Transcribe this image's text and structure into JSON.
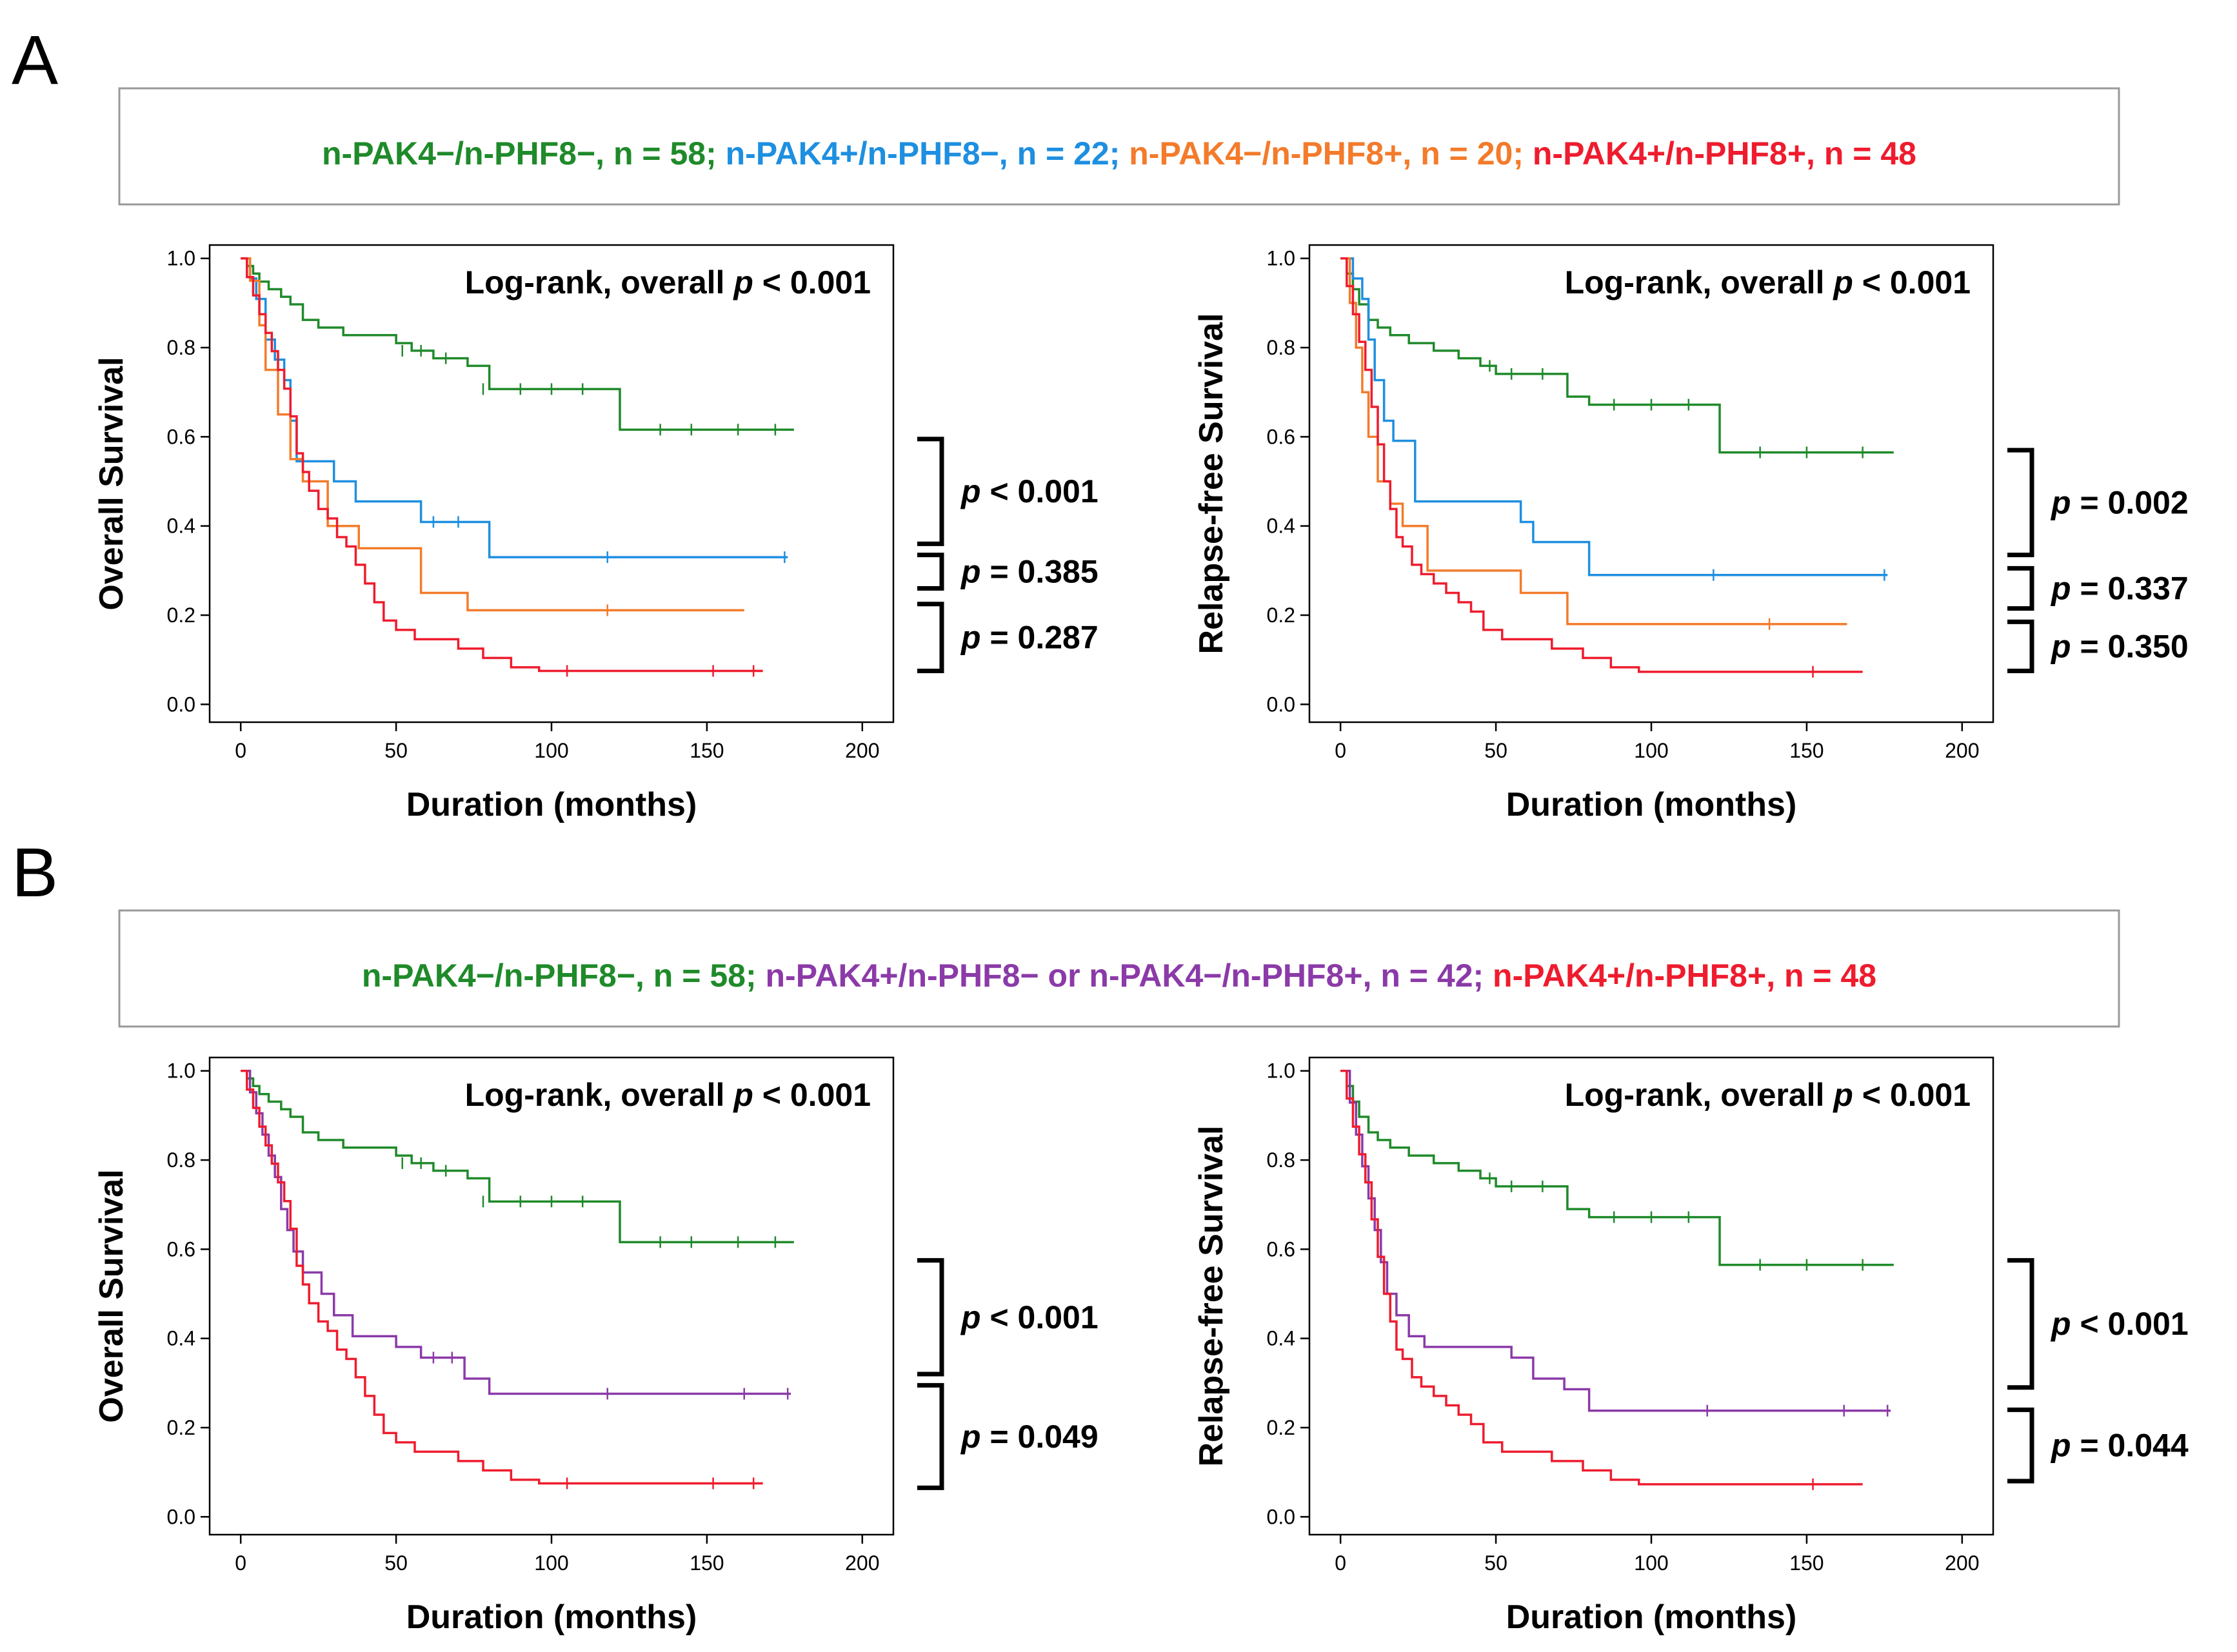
{
  "panels": {
    "A": {
      "label": "A",
      "legend": [
        {
          "text": "n-PAK4−/n-PHF8−, n = 58; ",
          "color": "#1f8a2a"
        },
        {
          "text": "n-PAK4+/n-PHF8−, n = 22; ",
          "color": "#1e8fe0"
        },
        {
          "text": "n-PAK4−/n-PHF8+, n = 20; ",
          "color": "#f37b2b"
        },
        {
          "text": "n-PAK4+/n-PHF8+, n = 48",
          "color": "#ee1c2e"
        }
      ]
    },
    "B": {
      "label": "B",
      "legend": [
        {
          "text": "n-PAK4−/n-PHF8−, n = 58; ",
          "color": "#1f8a2a"
        },
        {
          "text": "n-PAK4+/n-PHF8− or n-PAK4−/n-PHF8+, n = 42; ",
          "color": "#8b3aa8"
        },
        {
          "text": "n-PAK4+/n-PHF8+, n = 48",
          "color": "#ee1c2e"
        }
      ]
    }
  },
  "chart_data": [
    {
      "type": "line",
      "id": "A1",
      "panel": "A",
      "title": "Log-rank, overall p < 0.001",
      "xlabel": "Duration (months)",
      "ylabel": "Overall Survival",
      "xlim": [
        -10,
        210
      ],
      "ylim": [
        -0.04,
        1.03
      ],
      "xticks": [
        0,
        50,
        100,
        150,
        200
      ],
      "yticks": [
        0.0,
        0.2,
        0.4,
        0.6,
        0.8,
        1.0
      ],
      "series": [
        {
          "name": "n-PAK4−/n-PHF8−",
          "color": "#1f8a2a",
          "x": [
            0,
            2,
            4,
            6,
            9,
            13,
            16,
            20,
            25,
            33,
            37,
            50,
            55,
            62,
            73,
            80,
            122,
            178
          ],
          "y": [
            1.0,
            0.983,
            0.966,
            0.948,
            0.931,
            0.914,
            0.897,
            0.862,
            0.845,
            0.828,
            0.828,
            0.81,
            0.793,
            0.776,
            0.759,
            0.707,
            0.616,
            0.616
          ],
          "censor": [
            [
              52,
              0.793
            ],
            [
              58,
              0.793
            ],
            [
              66,
              0.776
            ],
            [
              78,
              0.707
            ],
            [
              90,
              0.707
            ],
            [
              100,
              0.707
            ],
            [
              110,
              0.707
            ],
            [
              135,
              0.616
            ],
            [
              145,
              0.616
            ],
            [
              160,
              0.616
            ],
            [
              172,
              0.616
            ]
          ]
        },
        {
          "name": "n-PAK4+/n-PHF8−",
          "color": "#1e8fe0",
          "x": [
            0,
            3,
            5,
            8,
            11,
            14,
            16,
            18,
            24,
            30,
            37,
            58,
            80,
            176
          ],
          "y": [
            1.0,
            0.955,
            0.909,
            0.818,
            0.773,
            0.727,
            0.636,
            0.545,
            0.545,
            0.5,
            0.455,
            0.409,
            0.33,
            0.33
          ],
          "censor": [
            [
              62,
              0.409
            ],
            [
              70,
              0.409
            ],
            [
              118,
              0.33
            ],
            [
              175,
              0.33
            ]
          ]
        },
        {
          "name": "n-PAK4−/n-PHF8+",
          "color": "#f37b2b",
          "x": [
            0,
            3,
            6,
            8,
            12,
            16,
            20,
            28,
            38,
            58,
            73,
            162
          ],
          "y": [
            1.0,
            0.95,
            0.85,
            0.75,
            0.65,
            0.55,
            0.5,
            0.4,
            0.35,
            0.25,
            0.211,
            0.211
          ],
          "censor": [
            [
              118,
              0.211
            ]
          ]
        },
        {
          "name": "n-PAK4+/n-PHF8+",
          "color": "#ee1c2e",
          "x": [
            0,
            2,
            4,
            6,
            8,
            10,
            12,
            14,
            16,
            18,
            20,
            22,
            25,
            28,
            31,
            34,
            37,
            40,
            43,
            46,
            50,
            56,
            62,
            70,
            78,
            87,
            96,
            168
          ],
          "y": [
            1.0,
            0.958,
            0.917,
            0.875,
            0.833,
            0.792,
            0.75,
            0.708,
            0.646,
            0.563,
            0.521,
            0.479,
            0.438,
            0.417,
            0.375,
            0.354,
            0.313,
            0.271,
            0.229,
            0.188,
            0.167,
            0.146,
            0.146,
            0.125,
            0.104,
            0.083,
            0.075,
            0.075
          ],
          "censor": [
            [
              105,
              0.075
            ],
            [
              152,
              0.075
            ],
            [
              165,
              0.075
            ]
          ]
        }
      ],
      "brackets": [
        {
          "from": 0.595,
          "to": 0.36,
          "label": "p < 0.001"
        },
        {
          "from": 0.335,
          "to": 0.26,
          "label": "p = 0.385"
        },
        {
          "from": 0.225,
          "to": 0.075,
          "label": "p = 0.287"
        }
      ]
    },
    {
      "type": "line",
      "id": "A2",
      "panel": "A",
      "title": "Log-rank, overall p < 0.001",
      "xlabel": "Duration (months)",
      "ylabel": "Relapse-free Survival",
      "xlim": [
        -10,
        210
      ],
      "ylim": [
        -0.04,
        1.03
      ],
      "xticks": [
        0,
        50,
        100,
        150,
        200
      ],
      "yticks": [
        0.0,
        0.2,
        0.4,
        0.6,
        0.8,
        1.0
      ],
      "series": [
        {
          "name": "n-PAK4−/n-PHF8−",
          "color": "#1f8a2a",
          "x": [
            0,
            2,
            4,
            6,
            9,
            12,
            16,
            22,
            30,
            38,
            45,
            50,
            73,
            80,
            122,
            178
          ],
          "y": [
            1.0,
            0.966,
            0.931,
            0.897,
            0.862,
            0.845,
            0.828,
            0.81,
            0.793,
            0.776,
            0.759,
            0.741,
            0.69,
            0.672,
            0.565,
            0.565
          ],
          "censor": [
            [
              48,
              0.759
            ],
            [
              55,
              0.741
            ],
            [
              65,
              0.741
            ],
            [
              88,
              0.672
            ],
            [
              100,
              0.672
            ],
            [
              112,
              0.672
            ],
            [
              135,
              0.565
            ],
            [
              150,
              0.565
            ],
            [
              168,
              0.565
            ]
          ]
        },
        {
          "name": "n-PAK4+/n-PHF8−",
          "color": "#1e8fe0",
          "x": [
            0,
            4,
            7,
            9,
            11,
            14,
            17,
            24,
            58,
            62,
            80,
            176
          ],
          "y": [
            1.0,
            0.955,
            0.909,
            0.818,
            0.727,
            0.636,
            0.591,
            0.455,
            0.409,
            0.364,
            0.29,
            0.29
          ],
          "censor": [
            [
              120,
              0.29
            ],
            [
              175,
              0.29
            ]
          ]
        },
        {
          "name": "n-PAK4−/n-PHF8+",
          "color": "#f37b2b",
          "x": [
            0,
            3,
            5,
            7,
            9,
            12,
            16,
            20,
            28,
            58,
            73,
            163
          ],
          "y": [
            1.0,
            0.9,
            0.8,
            0.7,
            0.6,
            0.5,
            0.45,
            0.4,
            0.3,
            0.25,
            0.18,
            0.18
          ],
          "censor": [
            [
              138,
              0.18
            ]
          ]
        },
        {
          "name": "n-PAK4+/n-PHF8+",
          "color": "#ee1c2e",
          "x": [
            0,
            2,
            4,
            6,
            8,
            10,
            12,
            14,
            16,
            18,
            20,
            23,
            26,
            30,
            34,
            38,
            42,
            46,
            52,
            60,
            68,
            78,
            87,
            96,
            168
          ],
          "y": [
            1.0,
            0.938,
            0.875,
            0.813,
            0.75,
            0.667,
            0.583,
            0.5,
            0.438,
            0.375,
            0.354,
            0.313,
            0.292,
            0.271,
            0.25,
            0.229,
            0.208,
            0.167,
            0.146,
            0.146,
            0.125,
            0.104,
            0.083,
            0.073,
            0.073
          ],
          "censor": [
            [
              152,
              0.073
            ]
          ]
        }
      ],
      "brackets": [
        {
          "from": 0.57,
          "to": 0.335,
          "label": "p = 0.002"
        },
        {
          "from": 0.305,
          "to": 0.215,
          "label": "p = 0.337"
        },
        {
          "from": 0.185,
          "to": 0.075,
          "label": "p = 0.350"
        }
      ]
    },
    {
      "type": "line",
      "id": "B1",
      "panel": "B",
      "title": "Log-rank, overall p < 0.001",
      "xlabel": "Duration (months)",
      "ylabel": "Overall Survival",
      "xlim": [
        -10,
        210
      ],
      "ylim": [
        -0.04,
        1.03
      ],
      "xticks": [
        0,
        50,
        100,
        150,
        200
      ],
      "yticks": [
        0.0,
        0.2,
        0.4,
        0.6,
        0.8,
        1.0
      ],
      "series": [
        {
          "name": "n-PAK4−/n-PHF8−",
          "color": "#1f8a2a",
          "x": [
            0,
            2,
            4,
            6,
            9,
            13,
            16,
            20,
            25,
            33,
            37,
            50,
            55,
            62,
            73,
            80,
            122,
            178
          ],
          "y": [
            1.0,
            0.983,
            0.966,
            0.948,
            0.931,
            0.914,
            0.897,
            0.862,
            0.845,
            0.828,
            0.828,
            0.81,
            0.793,
            0.776,
            0.759,
            0.707,
            0.616,
            0.616
          ],
          "censor": [
            [
              52,
              0.793
            ],
            [
              58,
              0.793
            ],
            [
              66,
              0.776
            ],
            [
              78,
              0.707
            ],
            [
              90,
              0.707
            ],
            [
              100,
              0.707
            ],
            [
              110,
              0.707
            ],
            [
              135,
              0.616
            ],
            [
              145,
              0.616
            ],
            [
              160,
              0.616
            ],
            [
              172,
              0.616
            ]
          ]
        },
        {
          "name": "n-PAK4+/n-PHF8− or n-PAK4−/n-PHF8+",
          "color": "#8b3aa8",
          "x": [
            0,
            3,
            5,
            7,
            9,
            11,
            13,
            15,
            17,
            20,
            26,
            30,
            36,
            50,
            58,
            72,
            80,
            177
          ],
          "y": [
            1.0,
            0.952,
            0.905,
            0.857,
            0.81,
            0.762,
            0.69,
            0.643,
            0.595,
            0.548,
            0.5,
            0.452,
            0.405,
            0.381,
            0.357,
            0.31,
            0.276,
            0.276
          ],
          "censor": [
            [
              62,
              0.357
            ],
            [
              68,
              0.357
            ],
            [
              118,
              0.276
            ],
            [
              162,
              0.276
            ],
            [
              176,
              0.276
            ]
          ]
        },
        {
          "name": "n-PAK4+/n-PHF8+",
          "color": "#ee1c2e",
          "x": [
            0,
            2,
            4,
            6,
            8,
            10,
            12,
            14,
            16,
            18,
            20,
            22,
            25,
            28,
            31,
            34,
            37,
            40,
            43,
            46,
            50,
            56,
            62,
            70,
            78,
            87,
            96,
            168
          ],
          "y": [
            1.0,
            0.958,
            0.917,
            0.875,
            0.833,
            0.792,
            0.75,
            0.708,
            0.646,
            0.563,
            0.521,
            0.479,
            0.438,
            0.417,
            0.375,
            0.354,
            0.313,
            0.271,
            0.229,
            0.188,
            0.167,
            0.146,
            0.146,
            0.125,
            0.104,
            0.083,
            0.075,
            0.075
          ],
          "censor": [
            [
              105,
              0.075
            ],
            [
              152,
              0.075
            ],
            [
              165,
              0.075
            ]
          ]
        }
      ],
      "brackets": [
        {
          "from": 0.575,
          "to": 0.32,
          "label": "p < 0.001"
        },
        {
          "from": 0.295,
          "to": 0.065,
          "label": "p = 0.049"
        }
      ]
    },
    {
      "type": "line",
      "id": "B2",
      "panel": "B",
      "title": "Log-rank, overall p < 0.001",
      "xlabel": "Duration (months)",
      "ylabel": "Relapse-free Survival",
      "xlim": [
        -10,
        210
      ],
      "ylim": [
        -0.04,
        1.03
      ],
      "xticks": [
        0,
        50,
        100,
        150,
        200
      ],
      "yticks": [
        0.0,
        0.2,
        0.4,
        0.6,
        0.8,
        1.0
      ],
      "series": [
        {
          "name": "n-PAK4−/n-PHF8−",
          "color": "#1f8a2a",
          "x": [
            0,
            2,
            4,
            6,
            9,
            12,
            16,
            22,
            30,
            38,
            45,
            50,
            73,
            80,
            122,
            178
          ],
          "y": [
            1.0,
            0.966,
            0.931,
            0.897,
            0.862,
            0.845,
            0.828,
            0.81,
            0.793,
            0.776,
            0.759,
            0.741,
            0.69,
            0.672,
            0.565,
            0.565
          ],
          "censor": [
            [
              48,
              0.759
            ],
            [
              55,
              0.741
            ],
            [
              65,
              0.741
            ],
            [
              88,
              0.672
            ],
            [
              100,
              0.672
            ],
            [
              112,
              0.672
            ],
            [
              135,
              0.565
            ],
            [
              150,
              0.565
            ],
            [
              168,
              0.565
            ]
          ]
        },
        {
          "name": "n-PAK4+/n-PHF8− or n-PAK4−/n-PHF8+",
          "color": "#8b3aa8",
          "x": [
            0,
            3,
            5,
            7,
            9,
            11,
            13,
            15,
            18,
            22,
            27,
            32,
            55,
            62,
            72,
            80,
            177
          ],
          "y": [
            1.0,
            0.929,
            0.857,
            0.786,
            0.714,
            0.643,
            0.571,
            0.5,
            0.452,
            0.405,
            0.381,
            0.381,
            0.357,
            0.31,
            0.286,
            0.238,
            0.238
          ],
          "censor": [
            [
              118,
              0.238
            ],
            [
              162,
              0.238
            ],
            [
              176,
              0.238
            ]
          ]
        },
        {
          "name": "n-PAK4+/n-PHF8+",
          "color": "#ee1c2e",
          "x": [
            0,
            2,
            4,
            6,
            8,
            10,
            12,
            14,
            16,
            18,
            20,
            23,
            26,
            30,
            34,
            38,
            42,
            46,
            52,
            60,
            68,
            78,
            87,
            96,
            168
          ],
          "y": [
            1.0,
            0.938,
            0.875,
            0.813,
            0.75,
            0.667,
            0.583,
            0.5,
            0.438,
            0.375,
            0.354,
            0.313,
            0.292,
            0.271,
            0.25,
            0.229,
            0.208,
            0.167,
            0.146,
            0.146,
            0.125,
            0.104,
            0.083,
            0.073,
            0.073
          ],
          "censor": [
            [
              152,
              0.073
            ]
          ]
        }
      ],
      "brackets": [
        {
          "from": 0.575,
          "to": 0.29,
          "label": "p < 0.001"
        },
        {
          "from": 0.24,
          "to": 0.08,
          "label": "p = 0.044"
        }
      ]
    }
  ]
}
